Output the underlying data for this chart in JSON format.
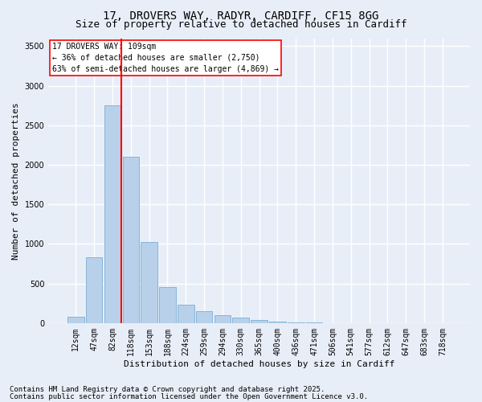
{
  "title_line1": "17, DROVERS WAY, RADYR, CARDIFF, CF15 8GG",
  "title_line2": "Size of property relative to detached houses in Cardiff",
  "xlabel": "Distribution of detached houses by size in Cardiff",
  "ylabel": "Number of detached properties",
  "categories": [
    "12sqm",
    "47sqm",
    "82sqm",
    "118sqm",
    "153sqm",
    "188sqm",
    "224sqm",
    "259sqm",
    "294sqm",
    "330sqm",
    "365sqm",
    "400sqm",
    "436sqm",
    "471sqm",
    "506sqm",
    "541sqm",
    "577sqm",
    "612sqm",
    "647sqm",
    "683sqm",
    "718sqm"
  ],
  "values": [
    80,
    830,
    2750,
    2100,
    1020,
    460,
    230,
    155,
    95,
    65,
    35,
    20,
    10,
    5,
    3,
    2,
    1,
    0,
    0,
    0,
    0
  ],
  "bar_color": "#b8d0ea",
  "bar_edge_color": "#7aafd4",
  "vline_color": "red",
  "vline_index": 2.5,
  "annotation_text": "17 DROVERS WAY: 109sqm\n← 36% of detached houses are smaller (2,750)\n63% of semi-detached houses are larger (4,869) →",
  "annotation_box_color": "white",
  "annotation_box_edge": "red",
  "ylim": [
    0,
    3600
  ],
  "yticks": [
    0,
    500,
    1000,
    1500,
    2000,
    2500,
    3000,
    3500
  ],
  "background_color": "#e8eef8",
  "grid_color": "white",
  "footer_line1": "Contains HM Land Registry data © Crown copyright and database right 2025.",
  "footer_line2": "Contains public sector information licensed under the Open Government Licence v3.0.",
  "title_fontsize": 10,
  "subtitle_fontsize": 9,
  "axis_label_fontsize": 8,
  "tick_fontsize": 7,
  "annotation_fontsize": 7,
  "footer_fontsize": 6.5
}
